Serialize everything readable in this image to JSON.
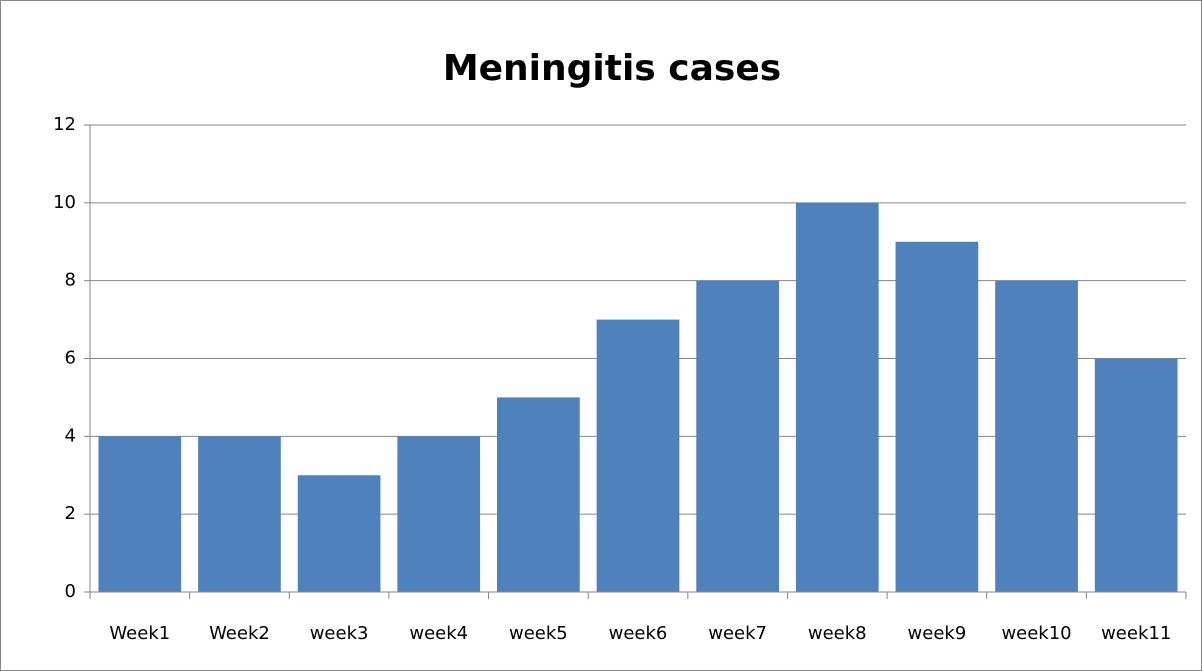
{
  "chart_data": {
    "type": "bar",
    "title": "Meningitis cases",
    "categories": [
      "Week1",
      "Week2",
      "week3",
      "week4",
      "week5",
      "week6",
      "week7",
      "week8",
      "week9",
      "week10",
      "week11"
    ],
    "values": [
      4,
      4,
      3,
      4,
      5,
      7,
      8,
      10,
      9,
      8,
      6
    ],
    "color": "#4f81bd",
    "ylim": [
      0,
      12
    ],
    "yticks": [
      0,
      2,
      4,
      6,
      8,
      10,
      12
    ],
    "grid": true
  }
}
